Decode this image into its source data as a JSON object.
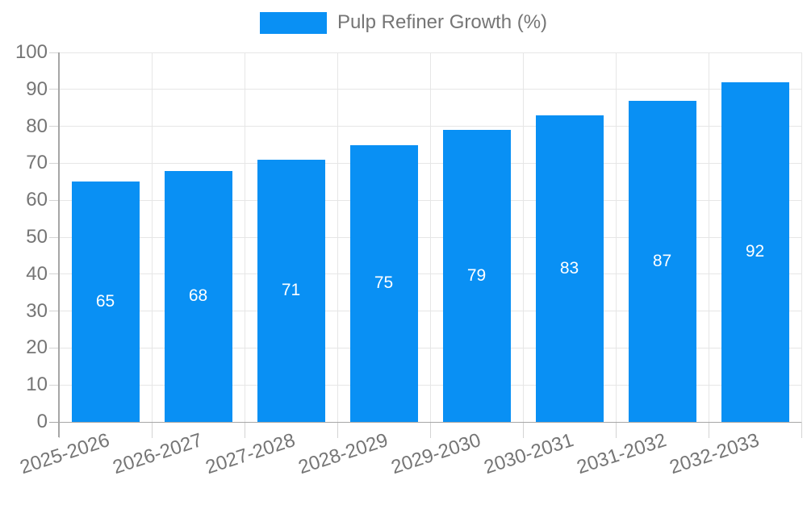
{
  "colors": {
    "bar": "#0990F4",
    "grid": "#e6e6e6",
    "tick": "#d4d4d4",
    "axis": "#a6a6a6",
    "text": "#757575",
    "bar_label": "#ffffff",
    "background": "#ffffff"
  },
  "chart_data": {
    "type": "bar",
    "legend_label": "Pulp Refiner Growth (%)",
    "categories": [
      "2025-2026",
      "2026-2027",
      "2027-2028",
      "2028-2029",
      "2029-2030",
      "2030-2031",
      "2031-2032",
      "2032-2033"
    ],
    "values": [
      65,
      68,
      71,
      75,
      79,
      83,
      87,
      92
    ],
    "title": "",
    "xlabel": "",
    "ylabel": "",
    "ylim": [
      0,
      100
    ],
    "ytick_step": 10,
    "grid": true,
    "legend_position": "top-center",
    "bar_value_labels": true,
    "x_label_rotation_deg": -18
  }
}
